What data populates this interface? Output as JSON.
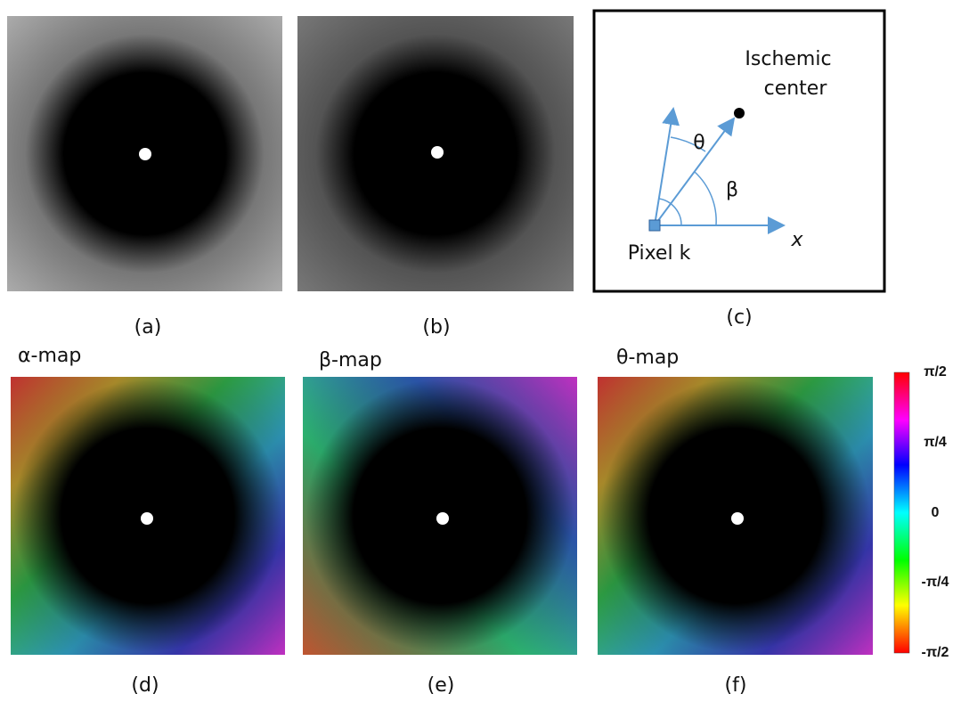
{
  "panel_labels": [
    "(a)",
    "(b)",
    "(c)",
    "(d)",
    "(e)",
    "(f)"
  ],
  "map_titles": [
    "α-map",
    "β-map",
    "θ-map"
  ],
  "diagram": {
    "target_lines": [
      "Ischemic",
      "center"
    ],
    "angle_theta": "θ",
    "angle_beta": "β",
    "pixel": "Pixel k",
    "axis": "x"
  },
  "colorbar": {
    "labels": [
      "π/2",
      "π/4",
      "0",
      "-π/4",
      "-π/2"
    ]
  }
}
